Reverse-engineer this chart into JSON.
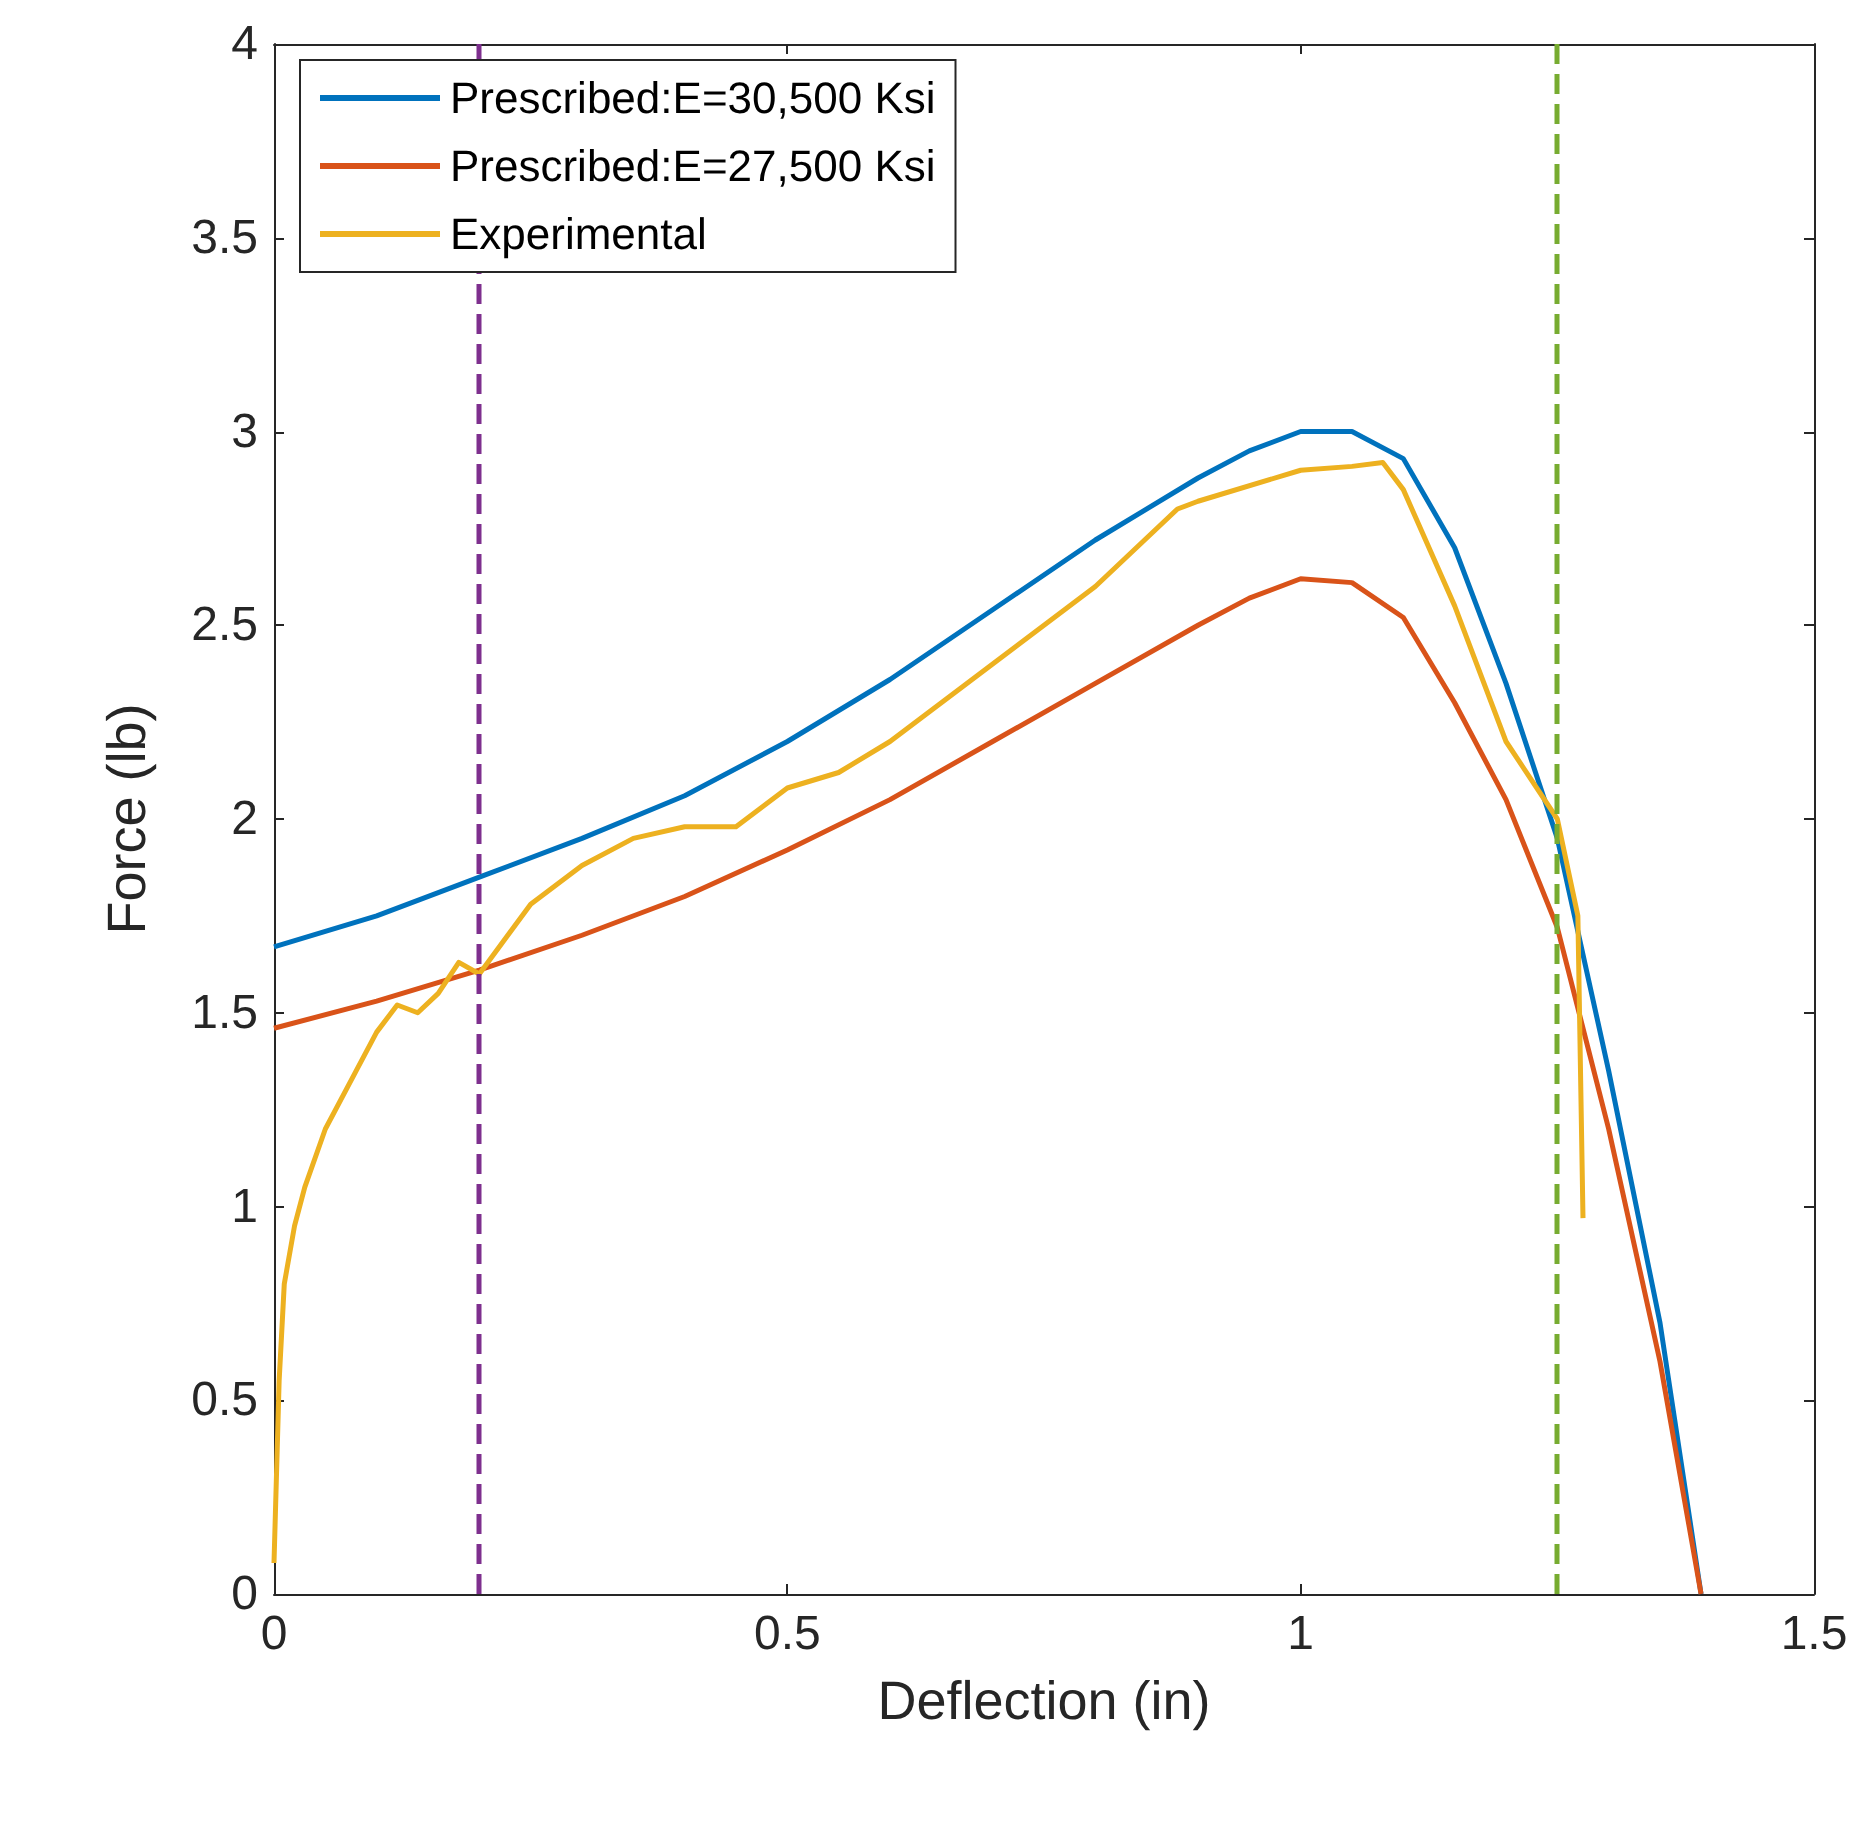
{
  "chart_data": {
    "type": "line",
    "xlabel": "Deflection (in)",
    "ylabel": "Force (lb)",
    "xlim": [
      0,
      1.5
    ],
    "xticks": [
      0,
      0.5,
      1,
      1.5
    ],
    "ylim": [
      0,
      4
    ],
    "yticks": [
      0,
      0.5,
      1,
      1.5,
      2,
      2.5,
      3,
      3.5,
      4
    ],
    "grid": false,
    "legend": "top left",
    "line_style": "solid",
    "series": [
      {
        "name": "Prescribed:E=30,500 Ksi",
        "color": "#0072bd",
        "x": [
          0,
          0.1,
          0.2,
          0.3,
          0.4,
          0.5,
          0.6,
          0.7,
          0.8,
          0.9,
          0.95,
          1.0,
          1.05,
          1.1,
          1.15,
          1.2,
          1.25,
          1.3,
          1.35,
          1.39
        ],
        "values": [
          1.67,
          1.75,
          1.85,
          1.95,
          2.06,
          2.2,
          2.36,
          2.54,
          2.72,
          2.88,
          2.95,
          3.0,
          3.0,
          2.93,
          2.7,
          2.35,
          1.95,
          1.35,
          0.7,
          0
        ]
      },
      {
        "name": "Prescribed:E=27,500 Ksi",
        "color": "#d95319",
        "x": [
          0,
          0.1,
          0.2,
          0.3,
          0.4,
          0.5,
          0.6,
          0.7,
          0.8,
          0.9,
          0.95,
          1.0,
          1.05,
          1.1,
          1.15,
          1.2,
          1.25,
          1.3,
          1.35,
          1.39
        ],
        "values": [
          1.46,
          1.53,
          1.61,
          1.7,
          1.8,
          1.92,
          2.05,
          2.2,
          2.35,
          2.5,
          2.57,
          2.62,
          2.61,
          2.52,
          2.3,
          2.05,
          1.72,
          1.2,
          0.6,
          0
        ]
      },
      {
        "name": "Experimental",
        "color": "#edb120",
        "x": [
          0,
          0.005,
          0.01,
          0.02,
          0.03,
          0.05,
          0.08,
          0.1,
          0.12,
          0.14,
          0.16,
          0.18,
          0.2,
          0.25,
          0.3,
          0.35,
          0.4,
          0.45,
          0.5,
          0.55,
          0.6,
          0.7,
          0.8,
          0.88,
          0.9,
          1.0,
          1.05,
          1.08,
          1.1,
          1.15,
          1.2,
          1.25,
          1.27,
          1.275
        ],
        "values": [
          0.08,
          0.55,
          0.8,
          0.95,
          1.05,
          1.2,
          1.35,
          1.45,
          1.52,
          1.5,
          1.55,
          1.63,
          1.6,
          1.78,
          1.88,
          1.95,
          1.98,
          1.98,
          2.08,
          2.12,
          2.2,
          2.4,
          2.6,
          2.8,
          2.82,
          2.9,
          2.91,
          2.92,
          2.85,
          2.55,
          2.2,
          2.0,
          1.75,
          0.97
        ]
      }
    ],
    "ref_lines": [
      {
        "axis": "x",
        "value": 0.2,
        "color": "#7e2f8e",
        "line_style": "dashed"
      },
      {
        "axis": "x",
        "value": 1.25,
        "color": "#77ac30",
        "line_style": "dashed"
      }
    ]
  }
}
